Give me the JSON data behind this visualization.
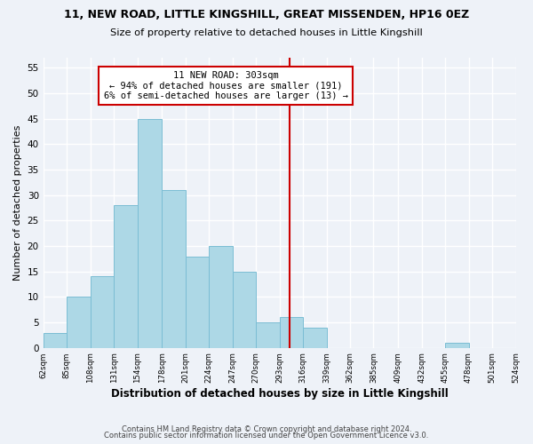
{
  "title1": "11, NEW ROAD, LITTLE KINGSHILL, GREAT MISSENDEN, HP16 0EZ",
  "title2": "Size of property relative to detached houses in Little Kingshill",
  "xlabel": "Distribution of detached houses by size in Little Kingshill",
  "ylabel": "Number of detached properties",
  "bin_edges": [
    62,
    85,
    108,
    131,
    154,
    178,
    201,
    224,
    247,
    270,
    293,
    316,
    339,
    362,
    385,
    409,
    432,
    455,
    478,
    501,
    524
  ],
  "bin_counts": [
    3,
    10,
    14,
    28,
    45,
    31,
    18,
    20,
    15,
    5,
    6,
    4,
    0,
    0,
    0,
    0,
    0,
    1,
    0,
    0
  ],
  "bar_color": "#add8e6",
  "bar_edge_color": "#7bbdd4",
  "vline_x": 303,
  "vline_color": "#cc0000",
  "annotation_title": "11 NEW ROAD: 303sqm",
  "annotation_line1": "← 94% of detached houses are smaller (191)",
  "annotation_line2": "6% of semi-detached houses are larger (13) →",
  "annotation_box_color": "#ffffff",
  "annotation_box_edge": "#cc0000",
  "ylim": [
    0,
    57
  ],
  "yticks": [
    0,
    5,
    10,
    15,
    20,
    25,
    30,
    35,
    40,
    45,
    50,
    55
  ],
  "tick_labels": [
    "62sqm",
    "85sqm",
    "108sqm",
    "131sqm",
    "154sqm",
    "178sqm",
    "201sqm",
    "224sqm",
    "247sqm",
    "270sqm",
    "293sqm",
    "316sqm",
    "339sqm",
    "362sqm",
    "385sqm",
    "409sqm",
    "432sqm",
    "455sqm",
    "478sqm",
    "501sqm",
    "524sqm"
  ],
  "footer1": "Contains HM Land Registry data © Crown copyright and database right 2024.",
  "footer2": "Contains public sector information licensed under the Open Government Licence v3.0.",
  "bg_color": "#eef2f8",
  "grid_color": "#ffffff"
}
